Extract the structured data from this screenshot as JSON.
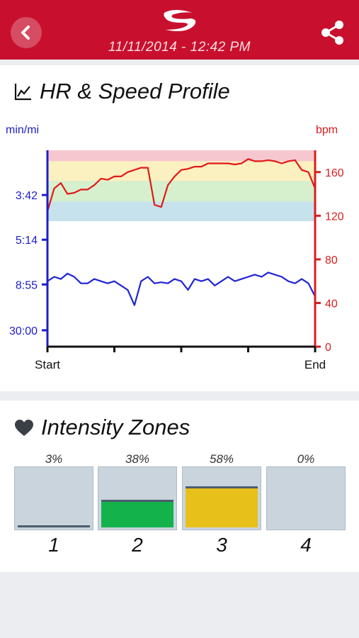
{
  "header": {
    "date": "11/11/2014 - 12:42 PM",
    "back_icon": "chevron-left-icon",
    "share_icon": "share-icon",
    "brand_color": "#c8102e"
  },
  "profile": {
    "title": "HR & Speed Profile",
    "icon": "line-chart-icon"
  },
  "chart_data": {
    "type": "line",
    "left_axis": {
      "label": "min/mi",
      "ticks": [
        "3:42",
        "5:14",
        "8:55",
        "30:00"
      ],
      "color": "#1d1dc9"
    },
    "right_axis": {
      "label": "bpm",
      "ticks": [
        "0",
        "40",
        "80",
        "120",
        "160"
      ],
      "range": [
        0,
        180
      ],
      "color": "#d71f1f"
    },
    "x_labels": [
      "Start",
      "End"
    ],
    "hr_zones": [
      {
        "from": 115,
        "to": 133,
        "color": "#c6e2ec"
      },
      {
        "from": 133,
        "to": 152,
        "color": "#d6efcd"
      },
      {
        "from": 152,
        "to": 170,
        "color": "#fbf0bf"
      },
      {
        "from": 170,
        "to": 180,
        "color": "#f7c7cf"
      }
    ],
    "series": [
      {
        "name": "HR",
        "color": "#e11a1a",
        "axis": "right",
        "values": [
          124,
          145,
          150,
          140,
          141,
          144,
          144,
          148,
          154,
          153,
          156,
          156,
          160,
          162,
          164,
          164,
          130,
          128,
          148,
          156,
          162,
          163,
          165,
          165,
          168,
          168,
          168,
          168,
          167,
          168,
          172,
          170,
          170,
          171,
          170,
          168,
          170,
          171,
          162,
          160,
          145
        ]
      },
      {
        "name": "Speed",
        "color": "#1f24d6",
        "axis": "left",
        "values": [
          60,
          64,
          62,
          67,
          64,
          58,
          58,
          62,
          60,
          58,
          60,
          56,
          52,
          38,
          60,
          64,
          58,
          59,
          58,
          62,
          60,
          52,
          62,
          60,
          62,
          56,
          60,
          64,
          60,
          62,
          64,
          66,
          64,
          68,
          66,
          64,
          60,
          58,
          62,
          58,
          46
        ]
      }
    ]
  },
  "zones": {
    "title": "Intensity Zones",
    "icon": "heart-icon",
    "items": [
      {
        "label": "1",
        "percent": "3%",
        "level": 0.03,
        "color": "#c9d4dc"
      },
      {
        "label": "2",
        "percent": "38%",
        "level": 0.38,
        "color": "#14b24b"
      },
      {
        "label": "3",
        "percent": "58%",
        "level": 0.58,
        "color": "#e8c01a"
      },
      {
        "label": "4",
        "percent": "0%",
        "level": 0.0,
        "color": "#c9d4dc"
      }
    ]
  }
}
